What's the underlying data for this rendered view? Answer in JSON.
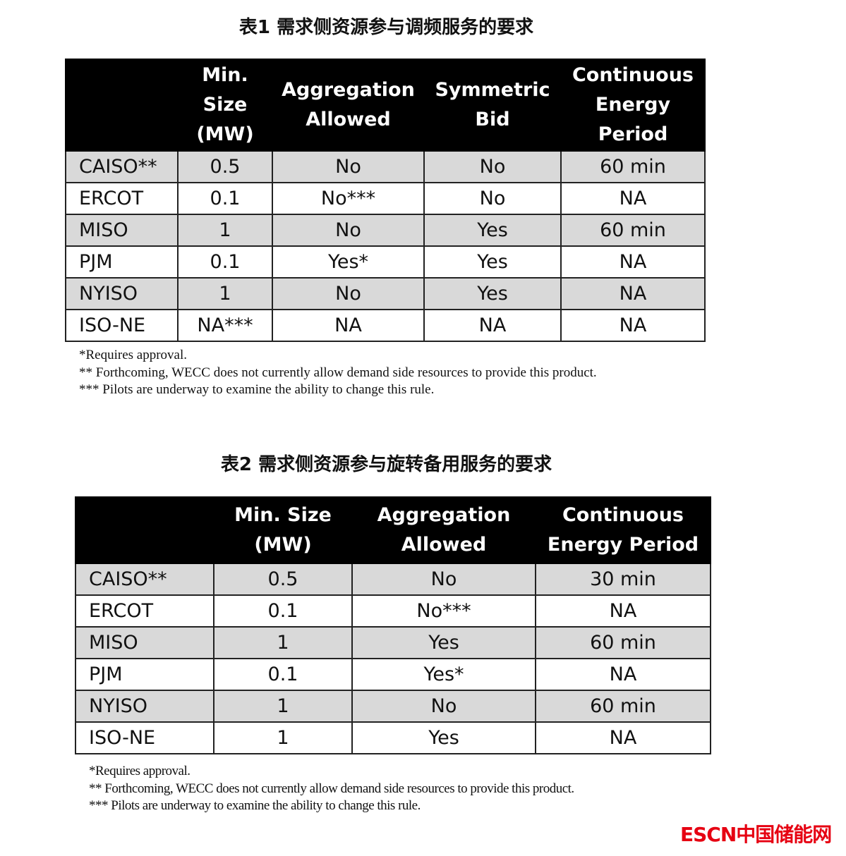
{
  "table1": {
    "title": "表1 需求侧资源参与调频服务的要求",
    "headers": [
      "",
      "Min. Size (MW)",
      "Aggregation Allowed",
      "Symmetric Bid",
      "Continuous Energy Period"
    ],
    "rows": [
      [
        "CAISO**",
        "0.5",
        "No",
        "No",
        "60 min"
      ],
      [
        "ERCOT",
        "0.1",
        "No***",
        "No",
        "NA"
      ],
      [
        "MISO",
        "1",
        "No",
        "Yes",
        "60 min"
      ],
      [
        "PJM",
        "0.1",
        "Yes*",
        "Yes",
        "NA"
      ],
      [
        "NYISO",
        "1",
        "No",
        "Yes",
        "NA"
      ],
      [
        "ISO-NE",
        "NA***",
        "NA",
        "NA",
        "NA"
      ]
    ],
    "notes": [
      "*Requires approval.",
      "** Forthcoming, WECC does not currently allow demand side resources to provide this product.",
      "*** Pilots are underway to examine the ability to change this rule."
    ]
  },
  "table2": {
    "title": "表2 需求侧资源参与旋转备用服务的要求",
    "headers": [
      "",
      "Min. Size (MW)",
      "Aggregation Allowed",
      "Continuous Energy Period"
    ],
    "rows": [
      [
        "CAISO**",
        "0.5",
        "No",
        "30 min"
      ],
      [
        "ERCOT",
        "0.1",
        "No***",
        "NA"
      ],
      [
        "MISO",
        "1",
        "Yes",
        "60 min"
      ],
      [
        "PJM",
        "0.1",
        "Yes*",
        "NA"
      ],
      [
        "NYISO",
        "1",
        "No",
        "60 min"
      ],
      [
        "ISO-NE",
        "1",
        "Yes",
        "NA"
      ]
    ],
    "notes": [
      "*Requires approval.",
      "** Forthcoming, WECC does not currently allow demand side resources to provide this product.",
      "*** Pilots are underway to examine the ability to change this rule."
    ]
  },
  "logo": {
    "text": "ESCN中国储能网",
    "color": "#e60012"
  }
}
